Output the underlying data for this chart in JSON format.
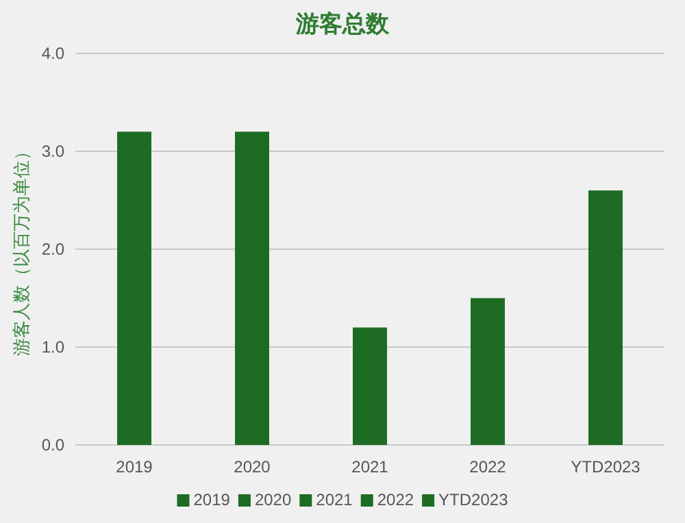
{
  "chart_data": {
    "type": "bar",
    "title": "游客总数",
    "ylabel": "游客人数（以百万为单位）",
    "categories": [
      "2019",
      "2020",
      "2021",
      "2022",
      "YTD2023"
    ],
    "series": [
      {
        "name": "2019",
        "color": "#1e6b24",
        "values": [
          3.2,
          null,
          null,
          null,
          null
        ]
      },
      {
        "name": "2020",
        "color": "#1e6b24",
        "values": [
          null,
          3.2,
          null,
          null,
          null
        ]
      },
      {
        "name": "2021",
        "color": "#1e6b24",
        "values": [
          null,
          null,
          1.2,
          null,
          null
        ]
      },
      {
        "name": "2022",
        "color": "#1e6b24",
        "values": [
          null,
          null,
          null,
          1.5,
          null
        ]
      },
      {
        "name": "YTD2023",
        "color": "#1e6b24",
        "values": [
          null,
          null,
          null,
          null,
          2.6
        ]
      }
    ],
    "stacked": true,
    "ylim": [
      0,
      4
    ],
    "yticks": [
      {
        "value": 0,
        "label": "0.0"
      },
      {
        "value": 1,
        "label": "1.0"
      },
      {
        "value": 2,
        "label": "2.0"
      },
      {
        "value": 3,
        "label": "3.0"
      },
      {
        "value": 4,
        "label": "4.0"
      }
    ],
    "grid": "y",
    "legend": "bottom"
  }
}
